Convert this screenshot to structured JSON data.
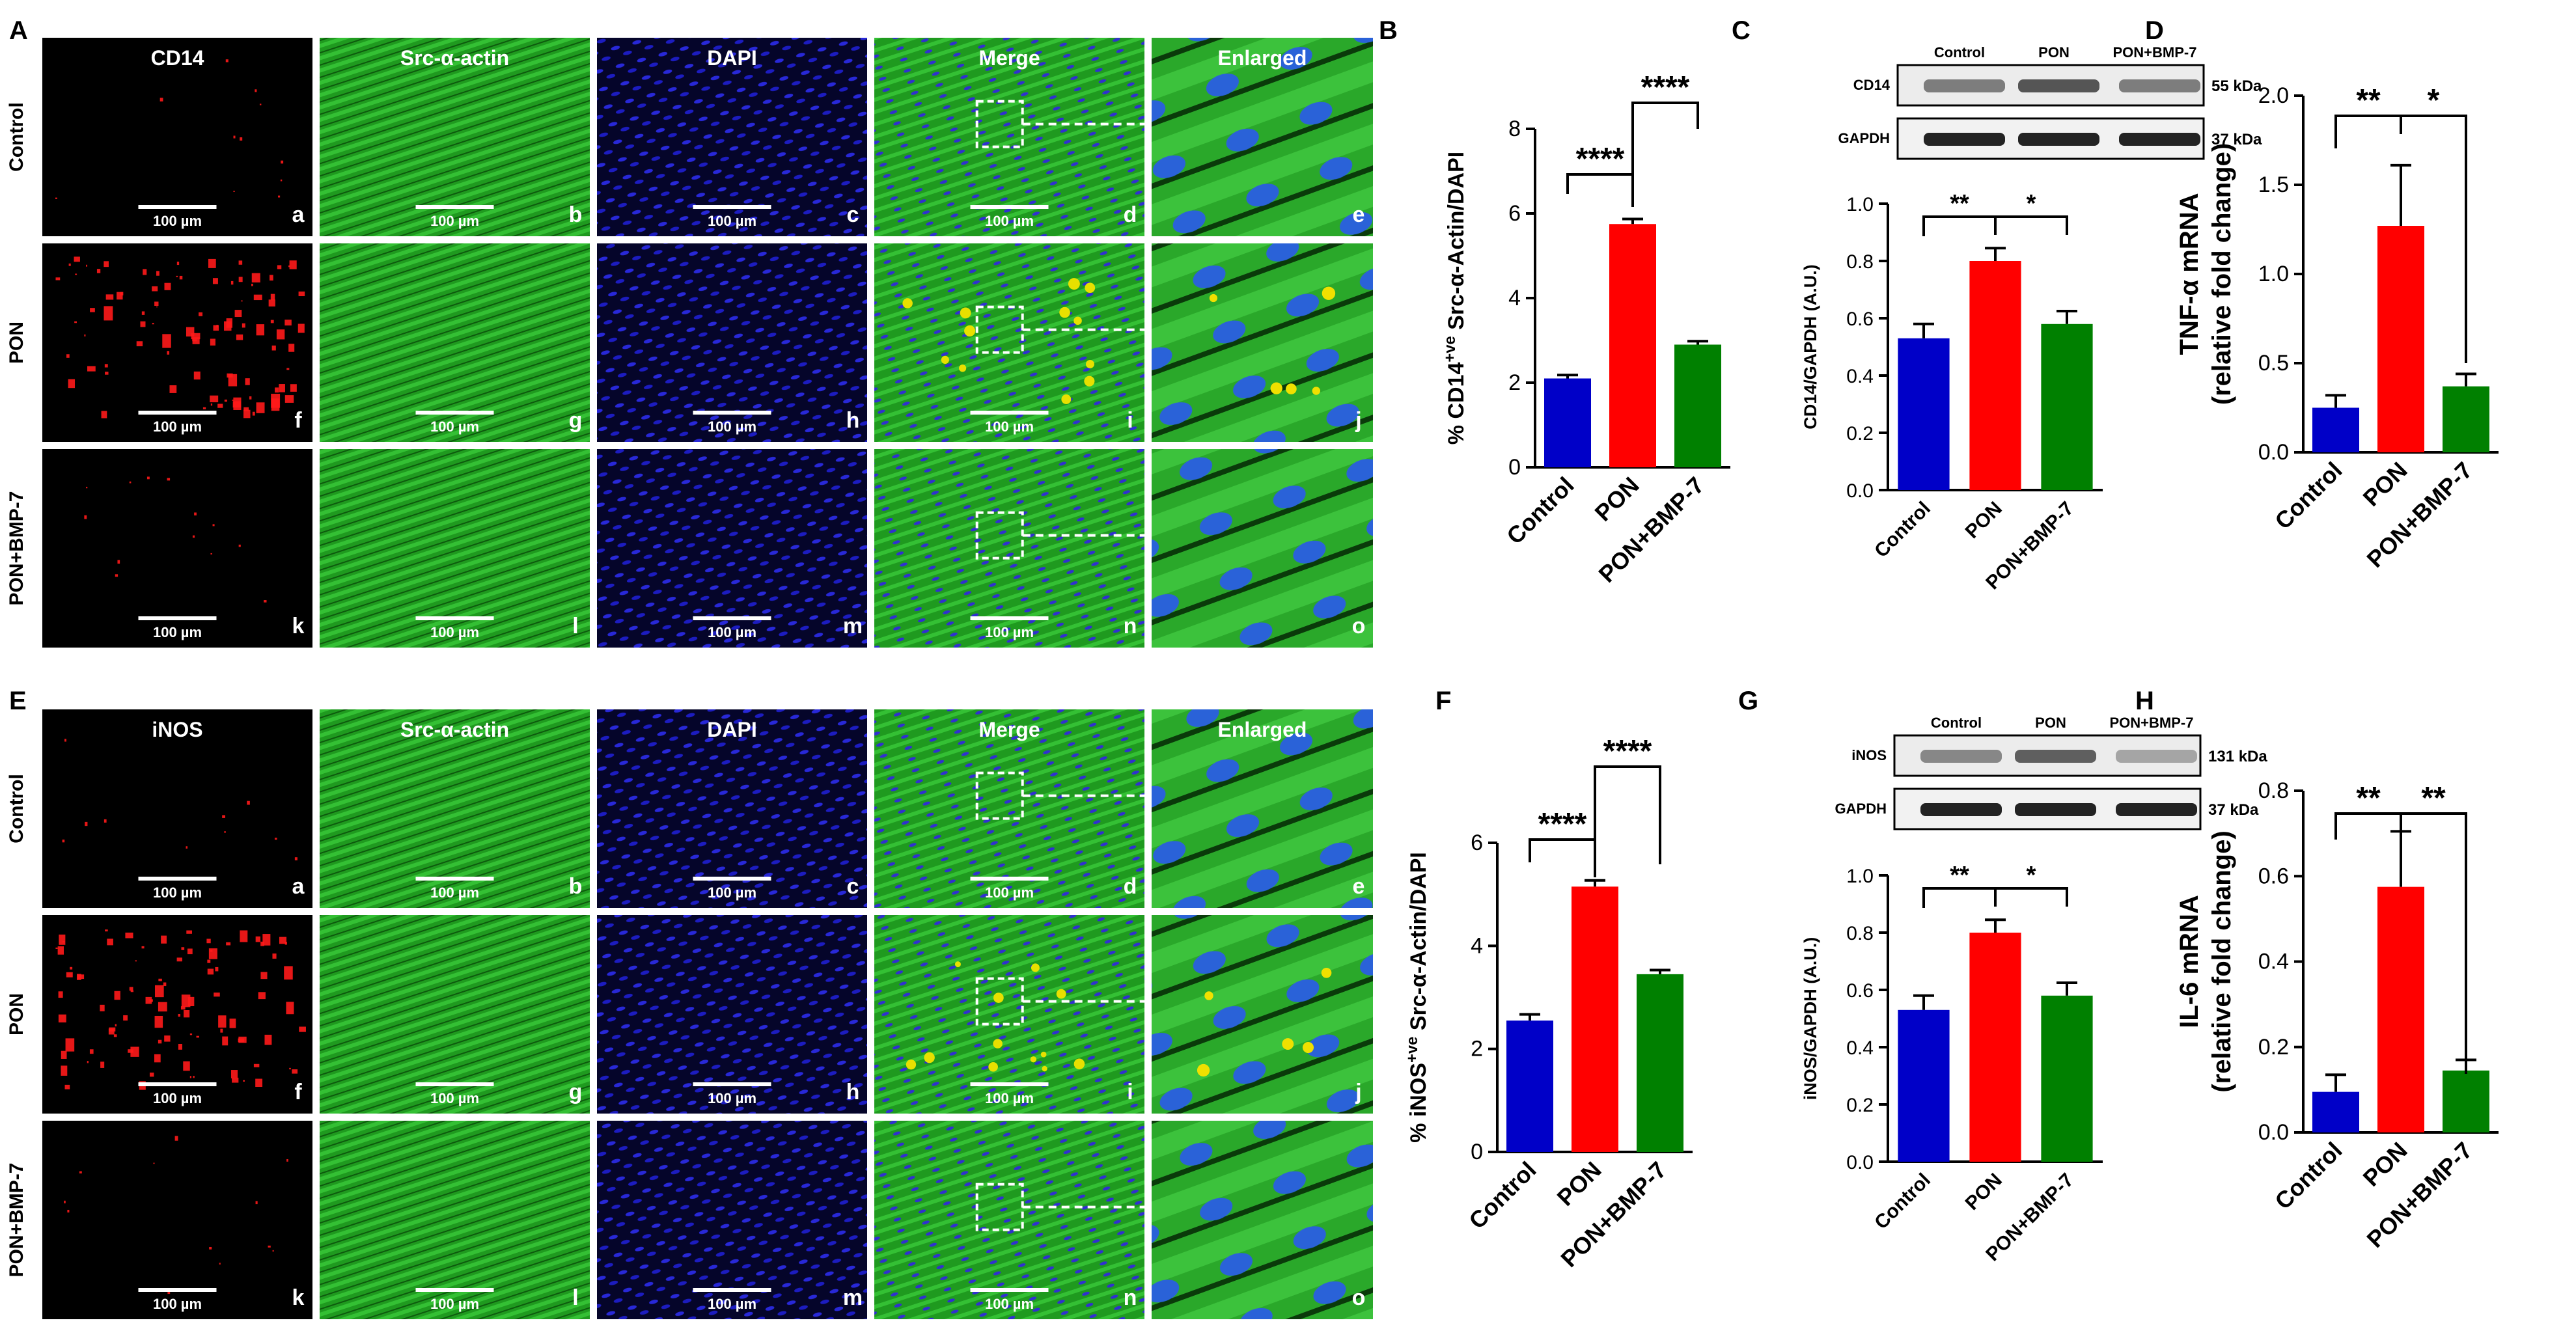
{
  "figure": {
    "panels": [
      {
        "id": "A",
        "type": "microscopy_grid",
        "channels": [
          "CD14",
          "Src-α-actin",
          "DAPI",
          "Merge",
          "Enlarged"
        ],
        "groups": [
          "Control",
          "PON",
          "PON+BMP-7"
        ],
        "tiles": [
          [
            "a",
            "b",
            "c",
            "d",
            "e"
          ],
          [
            "f",
            "g",
            "h",
            "i",
            "j"
          ],
          [
            "k",
            "l",
            "m",
            "n",
            "o"
          ]
        ],
        "scale_bar": "100 µm",
        "marker_color": "#ff1a1a",
        "marker_density": [
          0.06,
          1.0,
          0.08
        ]
      },
      {
        "id": "E",
        "type": "microscopy_grid",
        "channels": [
          "iNOS",
          "Src-α-actin",
          "DAPI",
          "Merge",
          "Enlarged"
        ],
        "groups": [
          "Control",
          "PON",
          "PON+BMP-7"
        ],
        "tiles": [
          [
            "a",
            "b",
            "c",
            "d",
            "e"
          ],
          [
            "f",
            "g",
            "h",
            "i",
            "j"
          ],
          [
            "k",
            "l",
            "m",
            "n",
            "o"
          ]
        ],
        "scale_bar": "100 µm",
        "marker_color": "#ff1a1a",
        "marker_density": [
          0.05,
          1.0,
          0.08
        ]
      },
      {
        "id": "C",
        "type": "western_blot",
        "lanes": [
          "Control",
          "PON",
          "PON+BMP-7"
        ],
        "bands": [
          {
            "protein": "CD14",
            "size": "55 kDa",
            "intensity": [
              0.55,
              0.75,
              0.55
            ]
          },
          {
            "protein": "GAPDH",
            "size": "37 kDa",
            "intensity": [
              1.0,
              1.0,
              1.0
            ]
          }
        ]
      },
      {
        "id": "G",
        "type": "western_blot",
        "lanes": [
          "Control",
          "PON",
          "PON+BMP-7"
        ],
        "bands": [
          {
            "protein": "iNOS",
            "size": "131 kDa",
            "intensity": [
              0.5,
              0.7,
              0.35
            ]
          },
          {
            "protein": "GAPDH",
            "size": "37 kDa",
            "intensity": [
              1.0,
              1.0,
              1.0
            ]
          }
        ]
      }
    ]
  },
  "chart_data": [
    {
      "id": "B",
      "type": "bar",
      "categories": [
        "Control",
        "PON",
        "PON+BMP-7"
      ],
      "values": [
        2.1,
        5.75,
        2.9
      ],
      "errors": [
        0.08,
        0.12,
        0.08
      ],
      "colors": [
        "#0000c8",
        "#ff0000",
        "#008000"
      ],
      "ylabel": "% CD14",
      "ylabel_sup": "+ve",
      "ylabel_rest": " Src-α-Actin/DAPI",
      "ylim": [
        0,
        8
      ],
      "yticks": [
        "0",
        "2",
        "4",
        "6",
        "8"
      ],
      "significance": [
        {
          "from": 0,
          "to": 1,
          "label": "****"
        },
        {
          "from": 1,
          "to": 2,
          "label": "****"
        }
      ]
    },
    {
      "id": "C",
      "type": "bar",
      "categories": [
        "Control",
        "PON",
        "PON+BMP-7"
      ],
      "values": [
        0.53,
        0.8,
        0.58
      ],
      "errors": [
        0.05,
        0.045,
        0.045
      ],
      "colors": [
        "#0000c8",
        "#ff0000",
        "#008000"
      ],
      "ylabel": "CD14/GAPDH (A.U.)",
      "ylim": [
        0,
        1.0
      ],
      "yticks": [
        "0.0",
        "0.2",
        "0.4",
        "0.6",
        "0.8",
        "1.0"
      ],
      "significance": [
        {
          "from": 0,
          "to": 1,
          "label": "**"
        },
        {
          "from": 1,
          "to": 2,
          "label": "*"
        }
      ]
    },
    {
      "id": "D",
      "type": "bar",
      "categories": [
        "Control",
        "PON",
        "PON+BMP-7"
      ],
      "values": [
        0.25,
        1.27,
        0.37
      ],
      "errors": [
        0.07,
        0.34,
        0.07
      ],
      "colors": [
        "#0000c8",
        "#ff0000",
        "#008000"
      ],
      "ylabel": "TNF-α mRNA",
      "ylabel2": "(relative fold change)",
      "ylim": [
        0,
        2.0
      ],
      "yticks": [
        "0.0",
        "0.5",
        "1.0",
        "1.5",
        "2.0"
      ],
      "significance": [
        {
          "from": 0,
          "to": 1,
          "label": "**"
        },
        {
          "from": 1,
          "to": 2,
          "label": "*"
        }
      ]
    },
    {
      "id": "F",
      "type": "bar",
      "categories": [
        "Control",
        "PON",
        "PON+BMP-7"
      ],
      "values": [
        2.55,
        5.15,
        3.45
      ],
      "errors": [
        0.12,
        0.12,
        0.08
      ],
      "colors": [
        "#0000c8",
        "#ff0000",
        "#008000"
      ],
      "ylabel": "% iNOS",
      "ylabel_sup": "+ve",
      "ylabel_rest": " Src-α-Actin/DAPI",
      "ylim": [
        0,
        6
      ],
      "yticks": [
        "0",
        "2",
        "4",
        "6"
      ],
      "significance": [
        {
          "from": 0,
          "to": 1,
          "label": "****"
        },
        {
          "from": 1,
          "to": 2,
          "label": "****"
        }
      ]
    },
    {
      "id": "G",
      "type": "bar",
      "categories": [
        "Control",
        "PON",
        "PON+BMP-7"
      ],
      "values": [
        0.53,
        0.8,
        0.58
      ],
      "errors": [
        0.05,
        0.045,
        0.045
      ],
      "colors": [
        "#0000c8",
        "#ff0000",
        "#008000"
      ],
      "ylabel": "iNOS/GAPDH (A.U.)",
      "ylim": [
        0,
        1.0
      ],
      "yticks": [
        "0.0",
        "0.2",
        "0.4",
        "0.6",
        "0.8",
        "1.0"
      ],
      "significance": [
        {
          "from": 0,
          "to": 1,
          "label": "**"
        },
        {
          "from": 1,
          "to": 2,
          "label": "*"
        }
      ]
    },
    {
      "id": "H",
      "type": "bar",
      "categories": [
        "Control",
        "PON",
        "PON+BMP-7"
      ],
      "values": [
        0.095,
        0.575,
        0.145
      ],
      "errors": [
        0.04,
        0.13,
        0.025
      ],
      "colors": [
        "#0000c8",
        "#ff0000",
        "#008000"
      ],
      "ylabel": "IL-6 mRNA",
      "ylabel2": "(relative fold change)",
      "ylim": [
        0,
        0.8
      ],
      "yticks": [
        "0.0",
        "0.2",
        "0.4",
        "0.6",
        "0.8"
      ],
      "significance": [
        {
          "from": 0,
          "to": 1,
          "label": "**"
        },
        {
          "from": 1,
          "to": 2,
          "label": "**"
        }
      ]
    }
  ]
}
